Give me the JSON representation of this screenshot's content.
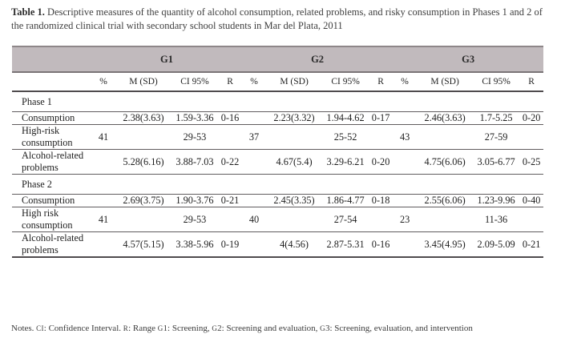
{
  "title": {
    "label": "Table 1.",
    "text": "Descriptive measures of the quantity of alcohol consumption, related problems, and risky consumption in Phases 1 and 2 of the randomized clinical trial with secondary school students in Mar del Plata, 2011"
  },
  "colors": {
    "header_band": "#c1babd",
    "band_border_top": "#8e8789",
    "band_border_bottom": "#7a7477",
    "rule_dark": "#4f4b4d",
    "rule_light": "#605c5e",
    "title_text": "#3f3f3f",
    "body_text": "#1e1e1e"
  },
  "table": {
    "groups": [
      "G1",
      "G2",
      "G3"
    ],
    "subheaders": [
      "%",
      "M (SD)",
      "CI 95%",
      "R"
    ],
    "sections": [
      {
        "label": "Phase 1",
        "rows": [
          {
            "label": "Consumption",
            "values": [
              "",
              "2.38(3.63)",
              "1.59-3.36",
              "0-16",
              "",
              "2.23(3.32)",
              "1.94-4.62",
              "0-17",
              "",
              "2.46(3.63)",
              "1.7-5.25",
              "0-20"
            ]
          },
          {
            "label": "High-risk consumption",
            "values": [
              "41",
              "",
              "29-53",
              "",
              "37",
              "",
              "25-52",
              "",
              "43",
              "",
              "27-59",
              ""
            ]
          },
          {
            "label": "Alcohol-related problems",
            "values": [
              "",
              "5.28(6.16)",
              "3.88-7.03",
              "0-22",
              "",
              "4.67(5.4)",
              "3.29-6.21",
              "0-20",
              "",
              "4.75(6.06)",
              "3.05-6.77",
              "0-25"
            ]
          }
        ]
      },
      {
        "label": "Phase 2",
        "rows": [
          {
            "label": "Consumption",
            "values": [
              "",
              "2.69(3.75)",
              "1.90-3.76",
              "0-21",
              "",
              "2.45(3.35)",
              "1.86-4.77",
              "0-18",
              "",
              "2.55(6.06)",
              "1.23-9.96",
              "0-40"
            ]
          },
          {
            "label": "High risk consumption",
            "values": [
              "41",
              "",
              "29-53",
              "",
              "40",
              "",
              "27-54",
              "",
              "23",
              "",
              "11-36",
              ""
            ]
          },
          {
            "label": "Alcohol-related problems",
            "values": [
              "",
              "4.57(5.15)",
              "3.38-5.96",
              "0-19",
              "",
              "4(4.56)",
              "2.87-5.31",
              "0-16",
              "",
              "3.45(4.95)",
              "2.09-5.09",
              "0-21"
            ]
          }
        ]
      }
    ]
  },
  "notes_parts": [
    {
      "text": "Notes. "
    },
    {
      "text": "CI",
      "small": true
    },
    {
      "text": ": Confidence Interval. "
    },
    {
      "text": "R",
      "small": true
    },
    {
      "text": ": Range "
    },
    {
      "text": "G",
      "small": true
    },
    {
      "text": "1: Screening, "
    },
    {
      "text": "G",
      "small": true
    },
    {
      "text": "2: Screening and evaluation, "
    },
    {
      "text": "G",
      "small": true
    },
    {
      "text": "3: Screening, evaluation, and intervention"
    }
  ]
}
